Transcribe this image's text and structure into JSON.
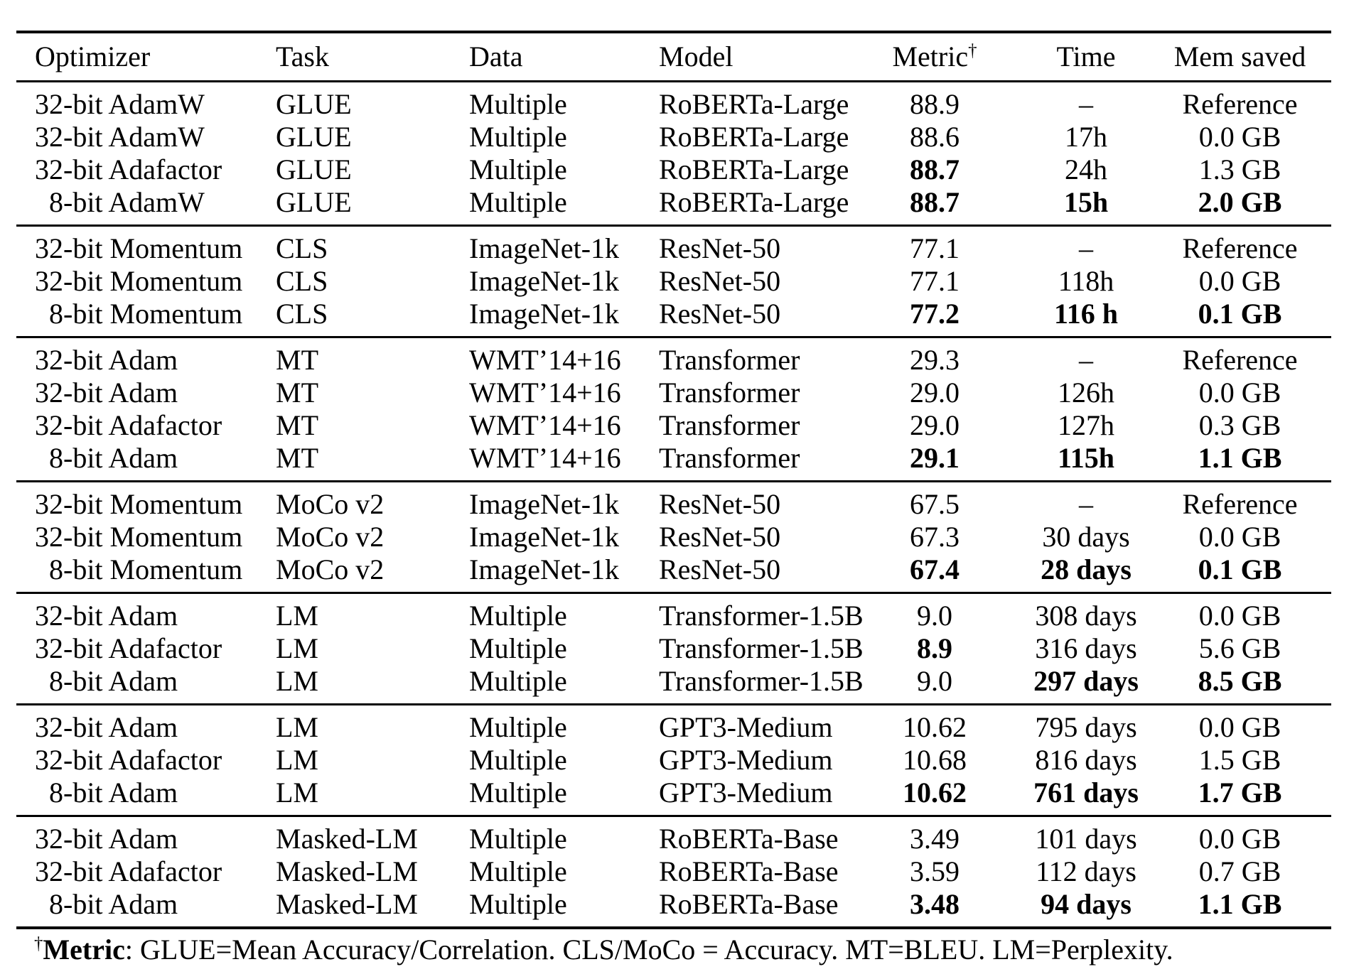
{
  "colors": {
    "background": "#ffffff",
    "text": "#000000",
    "rule": "#000000"
  },
  "table": {
    "columns": [
      {
        "key": "optimizer",
        "label": "Optimizer",
        "align": "left"
      },
      {
        "key": "task",
        "label": "Task",
        "align": "left"
      },
      {
        "key": "data",
        "label": "Data",
        "align": "left"
      },
      {
        "key": "model",
        "label": "Model",
        "align": "left"
      },
      {
        "key": "metric",
        "label": "Metric",
        "superscript": "†",
        "align": "center"
      },
      {
        "key": "time",
        "label": "Time",
        "align": "center"
      },
      {
        "key": "mem",
        "label": "Mem saved",
        "align": "center"
      }
    ],
    "groups": [
      {
        "rows": [
          {
            "cells": {
              "optimizer": "32-bit AdamW",
              "task": "GLUE",
              "data": "Multiple",
              "model": "RoBERTa-Large",
              "metric": "88.9",
              "time": "–",
              "mem": "Reference"
            },
            "bold": [],
            "indent": false
          },
          {
            "cells": {
              "optimizer": "32-bit AdamW",
              "task": "GLUE",
              "data": "Multiple",
              "model": "RoBERTa-Large",
              "metric": "88.6",
              "time": "17h",
              "mem": "0.0 GB"
            },
            "bold": [],
            "indent": false
          },
          {
            "cells": {
              "optimizer": "32-bit Adafactor",
              "task": "GLUE",
              "data": "Multiple",
              "model": "RoBERTa-Large",
              "metric": "88.7",
              "time": "24h",
              "mem": "1.3 GB"
            },
            "bold": [
              "metric"
            ],
            "indent": false
          },
          {
            "cells": {
              "optimizer": "8-bit AdamW",
              "task": "GLUE",
              "data": "Multiple",
              "model": "RoBERTa-Large",
              "metric": "88.7",
              "time": "15h",
              "mem": "2.0 GB"
            },
            "bold": [
              "metric",
              "time",
              "mem"
            ],
            "indent": true
          }
        ]
      },
      {
        "rows": [
          {
            "cells": {
              "optimizer": "32-bit Momentum",
              "task": "CLS",
              "data": "ImageNet-1k",
              "model": "ResNet-50",
              "metric": "77.1",
              "time": "–",
              "mem": "Reference"
            },
            "bold": [],
            "indent": false
          },
          {
            "cells": {
              "optimizer": "32-bit Momentum",
              "task": "CLS",
              "data": "ImageNet-1k",
              "model": "ResNet-50",
              "metric": "77.1",
              "time": "118h",
              "mem": "0.0 GB"
            },
            "bold": [],
            "indent": false
          },
          {
            "cells": {
              "optimizer": "8-bit Momentum",
              "task": "CLS",
              "data": "ImageNet-1k",
              "model": "ResNet-50",
              "metric": "77.2",
              "time": "116 h",
              "mem": "0.1 GB"
            },
            "bold": [
              "metric",
              "time",
              "mem"
            ],
            "indent": true
          }
        ]
      },
      {
        "rows": [
          {
            "cells": {
              "optimizer": "32-bit Adam",
              "task": "MT",
              "data": "WMT’14+16",
              "model": "Transformer",
              "metric": "29.3",
              "time": "–",
              "mem": "Reference"
            },
            "bold": [],
            "indent": false
          },
          {
            "cells": {
              "optimizer": "32-bit Adam",
              "task": "MT",
              "data": "WMT’14+16",
              "model": "Transformer",
              "metric": "29.0",
              "time": "126h",
              "mem": "0.0 GB"
            },
            "bold": [],
            "indent": false
          },
          {
            "cells": {
              "optimizer": "32-bit Adafactor",
              "task": "MT",
              "data": "WMT’14+16",
              "model": "Transformer",
              "metric": "29.0",
              "time": "127h",
              "mem": "0.3 GB"
            },
            "bold": [],
            "indent": false
          },
          {
            "cells": {
              "optimizer": "8-bit Adam",
              "task": "MT",
              "data": "WMT’14+16",
              "model": "Transformer",
              "metric": "29.1",
              "time": "115h",
              "mem": "1.1 GB"
            },
            "bold": [
              "metric",
              "time",
              "mem"
            ],
            "indent": true
          }
        ]
      },
      {
        "rows": [
          {
            "cells": {
              "optimizer": "32-bit Momentum",
              "task": "MoCo v2",
              "data": "ImageNet-1k",
              "model": "ResNet-50",
              "metric": "67.5",
              "time": "–",
              "mem": "Reference"
            },
            "bold": [],
            "indent": false
          },
          {
            "cells": {
              "optimizer": "32-bit Momentum",
              "task": "MoCo v2",
              "data": "ImageNet-1k",
              "model": "ResNet-50",
              "metric": "67.3",
              "time": "30 days",
              "mem": "0.0 GB"
            },
            "bold": [],
            "indent": false
          },
          {
            "cells": {
              "optimizer": "8-bit Momentum",
              "task": "MoCo v2",
              "data": "ImageNet-1k",
              "model": "ResNet-50",
              "metric": "67.4",
              "time": "28 days",
              "mem": "0.1 GB"
            },
            "bold": [
              "metric",
              "time",
              "mem"
            ],
            "indent": true
          }
        ]
      },
      {
        "rows": [
          {
            "cells": {
              "optimizer": "32-bit Adam",
              "task": "LM",
              "data": "Multiple",
              "model": "Transformer-1.5B",
              "metric": "9.0",
              "time": "308 days",
              "mem": "0.0 GB"
            },
            "bold": [],
            "indent": false
          },
          {
            "cells": {
              "optimizer": "32-bit Adafactor",
              "task": "LM",
              "data": "Multiple",
              "model": "Transformer-1.5B",
              "metric": "8.9",
              "time": "316 days",
              "mem": "5.6 GB"
            },
            "bold": [
              "metric"
            ],
            "indent": false
          },
          {
            "cells": {
              "optimizer": "8-bit Adam",
              "task": "LM",
              "data": "Multiple",
              "model": "Transformer-1.5B",
              "metric": "9.0",
              "time": "297 days",
              "mem": "8.5 GB"
            },
            "bold": [
              "time",
              "mem"
            ],
            "indent": true
          }
        ]
      },
      {
        "rows": [
          {
            "cells": {
              "optimizer": "32-bit Adam",
              "task": "LM",
              "data": "Multiple",
              "model": "GPT3-Medium",
              "metric": "10.62",
              "time": "795 days",
              "mem": "0.0 GB"
            },
            "bold": [],
            "indent": false
          },
          {
            "cells": {
              "optimizer": "32-bit Adafactor",
              "task": "LM",
              "data": "Multiple",
              "model": "GPT3-Medium",
              "metric": "10.68",
              "time": "816 days",
              "mem": "1.5 GB"
            },
            "bold": [],
            "indent": false
          },
          {
            "cells": {
              "optimizer": "8-bit Adam",
              "task": "LM",
              "data": "Multiple",
              "model": "GPT3-Medium",
              "metric": "10.62",
              "time": "761 days",
              "mem": "1.7 GB"
            },
            "bold": [
              "metric",
              "time",
              "mem"
            ],
            "indent": true
          }
        ]
      },
      {
        "rows": [
          {
            "cells": {
              "optimizer": "32-bit Adam",
              "task": "Masked-LM",
              "data": "Multiple",
              "model": "RoBERTa-Base",
              "metric": "3.49",
              "time": "101 days",
              "mem": "0.0 GB"
            },
            "bold": [],
            "indent": false
          },
          {
            "cells": {
              "optimizer": "32-bit Adafactor",
              "task": "Masked-LM",
              "data": "Multiple",
              "model": "RoBERTa-Base",
              "metric": "3.59",
              "time": "112 days",
              "mem": "0.7 GB"
            },
            "bold": [],
            "indent": false
          },
          {
            "cells": {
              "optimizer": "8-bit Adam",
              "task": "Masked-LM",
              "data": "Multiple",
              "model": "RoBERTa-Base",
              "metric": "3.48",
              "time": "94 days",
              "mem": "1.1 GB"
            },
            "bold": [
              "metric",
              "time",
              "mem"
            ],
            "indent": true
          }
        ]
      }
    ],
    "footnote": {
      "dagger": "†",
      "label": "Metric",
      "text": ": GLUE=Mean Accuracy/Correlation. CLS/MoCo = Accuracy. MT=BLEU. LM=Perplexity."
    }
  }
}
